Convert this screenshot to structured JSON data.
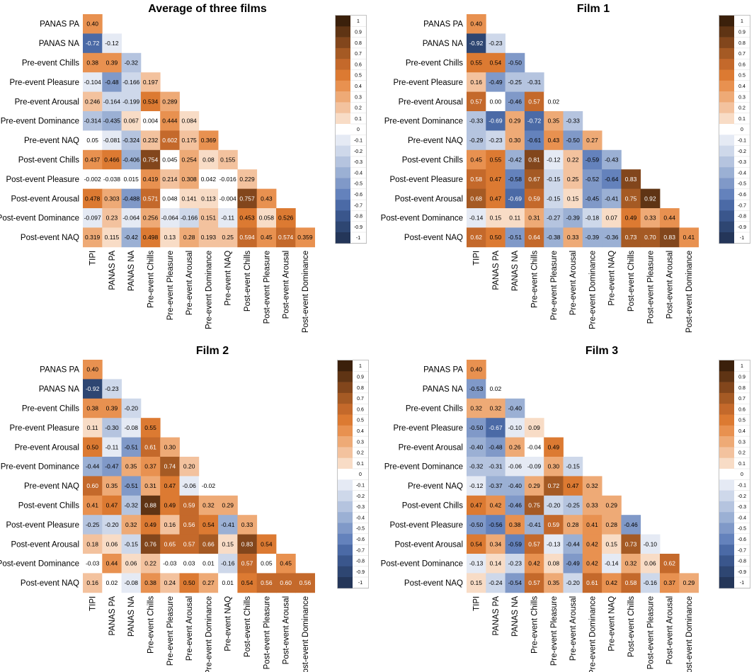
{
  "chart_data": [
    {
      "type": "heatmap",
      "title": "Average of three films",
      "row_labels": [
        "PANAS PA",
        "PANAS NA",
        "Pre-event Chills",
        "Pre-event Pleasure",
        "Pre-event Arousal",
        "Pre-event Dominance",
        "Pre-event NAQ",
        "Post-event Chills",
        "Post-event Pleasure",
        "Post-event Arousal",
        "Post-event Dominance",
        "Post-event NAQ"
      ],
      "col_labels": [
        "TIPI",
        "PANAS PA",
        "PANAS NA",
        "Pre-event Chills",
        "Pre-event Pleasure",
        "Pre-event Arousal",
        "Pre-event Dominance",
        "Pre-event NAQ",
        "Post-event Chills",
        "Post-event Pleasure",
        "Post-event Arousal",
        "Post-event Dominance"
      ],
      "values": [
        [
          "0.40"
        ],
        [
          "-0.72",
          "-0.12"
        ],
        [
          "0.38",
          "0.39",
          "-0.32"
        ],
        [
          "-0.104",
          "-0.48",
          "-0.166",
          "0.197"
        ],
        [
          "0.246",
          "-0.164",
          "-0.199",
          "0.534",
          "0.289"
        ],
        [
          "-0.314",
          "-0.435",
          "0.067",
          "0.004",
          "0.444",
          "0.084"
        ],
        [
          "0.05",
          "-0.081",
          "-0.324",
          "0.232",
          "0.602",
          "0.175",
          "0.369"
        ],
        [
          "0.437",
          "0.466",
          "-0.406",
          "0.754",
          "0.045",
          "0.254",
          "0.08",
          "0.155"
        ],
        [
          "-0.002",
          "-0.038",
          "0.015",
          "0.419",
          "0.214",
          "0.308",
          "0.042",
          "-0.016",
          "0.229"
        ],
        [
          "0.478",
          "0.303",
          "-0.488",
          "0.571",
          "0.048",
          "0.141",
          "0.113",
          "-0.004",
          "0.757",
          "0.43"
        ],
        [
          "-0.097",
          "0.23",
          "-0.064",
          "0.256",
          "-0.064",
          "-0.166",
          "0.151",
          "-0.11",
          "0.453",
          "0.058",
          "0.526"
        ],
        [
          "0.319",
          "0.115",
          "-0.42",
          "0.498",
          "0.13",
          "0.28",
          "0.193",
          "0.25",
          "0.594",
          "0.45",
          "0.574",
          "0.359"
        ]
      ],
      "color_range": [
        -1,
        1
      ]
    },
    {
      "type": "heatmap",
      "title": "Film 1",
      "row_labels": [
        "PANAS PA",
        "PANAS NA",
        "Pre-event Chills",
        "Pre-event Pleasure",
        "Pre-event Arousal",
        "Pre-event Dominance",
        "Pre-event NAQ",
        "Post-event Chills",
        "Post-event Pleasure",
        "Post-event Arousal",
        "Post-event Dominance",
        "Post-event NAQ"
      ],
      "col_labels": [
        "TIPI",
        "PANAS PA",
        "PANAS NA",
        "Pre-event Chills",
        "Pre-event Pleasure",
        "Pre-event Arousal",
        "Pre-event Dominance",
        "Pre-event NAQ",
        "Post-event Chills",
        "Post-event Pleasure",
        "Post-event Arousal",
        "Post-event Dominance"
      ],
      "values": [
        [
          "0.40"
        ],
        [
          "-0.92",
          "-0.23"
        ],
        [
          "0.55",
          "0.54",
          "-0.50"
        ],
        [
          "0.16",
          "-0.49",
          "-0.25",
          "-0.31"
        ],
        [
          "0.57",
          "0.00",
          "-0.46",
          "0.57",
          "0.02"
        ],
        [
          "-0.33",
          "-0.69",
          "0.29",
          "-0.72",
          "0.35",
          "-0.33"
        ],
        [
          "-0.29",
          "-0.23",
          "0.30",
          "-0.61",
          "0.43",
          "-0.50",
          "0.27"
        ],
        [
          "0.45",
          "0.55",
          "-0.42",
          "0.81",
          "-0.12",
          "0.22",
          "-0.59",
          "-0.43"
        ],
        [
          "0.58",
          "0.47",
          "-0.58",
          "0.67",
          "-0.15",
          "0.25",
          "-0.52",
          "-0.64",
          "0.83"
        ],
        [
          "0.68",
          "0.47",
          "-0.69",
          "0.59",
          "-0.15",
          "0.15",
          "-0.45",
          "-0.41",
          "0.75",
          "0.92"
        ],
        [
          "-0.14",
          "0.15",
          "0.11",
          "0.31",
          "-0.27",
          "-0.39",
          "-0.18",
          "0.07",
          "0.49",
          "0.33",
          "0.44"
        ],
        [
          "0.62",
          "0.50",
          "-0.51",
          "0.64",
          "-0.38",
          "0.33",
          "-0.39",
          "-0.36",
          "0.73",
          "0.70",
          "0.83",
          "0.41"
        ]
      ],
      "color_range": [
        -1,
        1
      ]
    },
    {
      "type": "heatmap",
      "title": "Film 2",
      "row_labels": [
        "PANAS PA",
        "PANAS NA",
        "Pre-event Chills",
        "Pre-event Pleasure",
        "Pre-event Arousal",
        "Pre-event Dominance",
        "Pre-event NAQ",
        "Post-event Chills",
        "Post-event Pleasure",
        "Post-event Arousal",
        "Post-event Dominance",
        "Post-event NAQ"
      ],
      "col_labels": [
        "TIPI",
        "PANAS PA",
        "PANAS NA",
        "Pre-event Chills",
        "Pre-event Pleasure",
        "Pre-event Arousal",
        "Pre-event Dominance",
        "Pre-event NAQ",
        "Post-event Chills",
        "Post-event Pleasure",
        "Post-event Arousal",
        "Post-event Dominance"
      ],
      "values": [
        [
          "0.40"
        ],
        [
          "-0.92",
          "-0.23"
        ],
        [
          "0.38",
          "0.39",
          "-0.20"
        ],
        [
          "0.11",
          "-0.30",
          "-0.08",
          "0.55"
        ],
        [
          "0.50",
          "-0.11",
          "-0.51",
          "0.61",
          "0.30"
        ],
        [
          "-0.44",
          "-0.47",
          "0.35",
          "0.37",
          "0.74",
          "0.20"
        ],
        [
          "0.60",
          "0.35",
          "-0.51",
          "0.31",
          "0.47",
          "-0.06",
          "-0.02"
        ],
        [
          "0.41",
          "0.47",
          "-0.32",
          "0.88",
          "0.49",
          "0.59",
          "0.32",
          "0.29"
        ],
        [
          "-0.25",
          "-0.20",
          "0.32",
          "0.49",
          "0.16",
          "0.56",
          "0.54",
          "-0.41",
          "0.33"
        ],
        [
          "0.18",
          "0.06",
          "-0.15",
          "0.76",
          "0.65",
          "0.57",
          "0.66",
          "0.15",
          "0.83",
          "0.54"
        ],
        [
          "-0.03",
          "0.44",
          "0.06",
          "0.22",
          "-0.03",
          "0.03",
          "0.01",
          "-0.16",
          "0.57",
          "0.05",
          "0.45"
        ],
        [
          "0.16",
          "0.02",
          "-0.08",
          "0.38",
          "0.24",
          "0.50",
          "0.27",
          "0.01",
          "0.54",
          "0.56",
          "0.60",
          "0.56"
        ]
      ],
      "color_range": [
        -1,
        1
      ]
    },
    {
      "type": "heatmap",
      "title": "Film 3",
      "row_labels": [
        "PANAS PA",
        "PANAS NA",
        "Pre-event Chills",
        "Pre-event Pleasure",
        "Pre-event Arousal",
        "Pre-event Dominance",
        "Pre-event NAQ",
        "Post-event Chills",
        "Post-event Pleasure",
        "Post-event Arousal",
        "Post-event Dominance",
        "Post-event NAQ"
      ],
      "col_labels": [
        "TIPI",
        "PANAS PA",
        "PANAS NA",
        "Pre-event Chills",
        "Pre-event Pleasure",
        "Pre-event Arousal",
        "Pre-event Dominance",
        "Pre-event NAQ",
        "Post-event Chills",
        "Post-event Pleasure",
        "Post-event Arousal",
        "Post-event Dominance"
      ],
      "values": [
        [
          "0.40"
        ],
        [
          "-0.53",
          "0.02"
        ],
        [
          "0.32",
          "0.32",
          "-0.40"
        ],
        [
          "-0.50",
          "-0.67",
          "-0.10",
          "0.09"
        ],
        [
          "-0.40",
          "-0.48",
          "0.26",
          "-0.04",
          "0.49"
        ],
        [
          "-0.32",
          "-0.31",
          "-0.06",
          "-0.09",
          "0.30",
          "-0.15"
        ],
        [
          "-0.12",
          "-0.37",
          "-0.40",
          "0.29",
          "0.72",
          "0.47",
          "0.32"
        ],
        [
          "0.47",
          "0.42",
          "-0.46",
          "0.75",
          "-0.20",
          "-0.25",
          "0.33",
          "0.29"
        ],
        [
          "-0.50",
          "-0.56",
          "0.38",
          "-0.41",
          "0.59",
          "0.28",
          "0.41",
          "0.28",
          "-0.46"
        ],
        [
          "0.54",
          "0.34",
          "-0.59",
          "0.57",
          "-0.13",
          "-0.44",
          "0.42",
          "0.15",
          "0.73",
          "-0.10"
        ],
        [
          "-0.13",
          "0.14",
          "-0.23",
          "0.42",
          "0.08",
          "-0.49",
          "0.42",
          "-0.14",
          "0.32",
          "0.06",
          "0.62"
        ],
        [
          "0.15",
          "-0.24",
          "-0.54",
          "0.57",
          "0.35",
          "-0.20",
          "0.61",
          "0.42",
          "0.58",
          "-0.16",
          "0.37",
          "0.29"
        ]
      ],
      "color_range": [
        -1,
        1
      ]
    }
  ],
  "legend": {
    "ticks": [
      "1",
      "0.9",
      "0.8",
      "0.7",
      "0.6",
      "0.5",
      "0.4",
      "0.3",
      "0.2",
      "0.1",
      "0",
      "-0.1",
      "-0.2",
      "-0.3",
      "-0.4",
      "-0.5",
      "-0.6",
      "-0.7",
      "-0.8",
      "-0.9",
      "-1"
    ],
    "colors": [
      "#3b200b",
      "#5f3414",
      "#82461c",
      "#a55a24",
      "#c4692b",
      "#dc7a32",
      "#e89150",
      "#eeaa76",
      "#f3c29e",
      "#f8dcc6",
      "#ffffff",
      "#e5eaf4",
      "#ced8ea",
      "#b5c4df",
      "#9bb0d4",
      "#8099c8",
      "#6482bc",
      "#4b6aa6",
      "#3a568c",
      "#2e4672",
      "#243659"
    ]
  }
}
